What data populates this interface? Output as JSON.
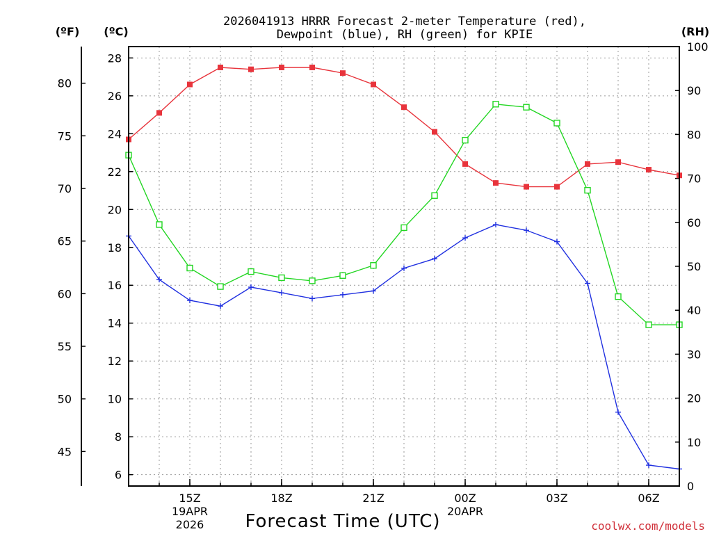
{
  "chart_data": {
    "type": "line",
    "title_line1": "2026041913 HRRR Forecast 2-meter Temperature (red),",
    "title_line2": "Dewpoint (blue), RH (green) for KPIE",
    "xlabel": "Forecast Time (UTC)",
    "credit": "coolwx.com/models",
    "units": {
      "fahrenheit": "(ºF)",
      "celsius": "(ºC)",
      "rh": "(RH)"
    },
    "x_hours": [
      13,
      14,
      15,
      16,
      17,
      18,
      19,
      20,
      21,
      22,
      23,
      24,
      25,
      26,
      27,
      28,
      29,
      30,
      31
    ],
    "x_tick_labels": [
      {
        "hour": 15,
        "label": "15Z",
        "date1": "19APR",
        "date2": "2026"
      },
      {
        "hour": 18,
        "label": "18Z"
      },
      {
        "hour": 21,
        "label": "21Z"
      },
      {
        "hour": 24,
        "label": "00Z",
        "date1": "20APR"
      },
      {
        "hour": 27,
        "label": "03Z"
      },
      {
        "hour": 30,
        "label": "06Z"
      }
    ],
    "xlim": [
      13,
      31
    ],
    "celsius_ylim": [
      5.4,
      28.6
    ],
    "celsius_ticks": [
      6,
      8,
      10,
      12,
      14,
      16,
      18,
      20,
      22,
      24,
      26,
      28
    ],
    "fahrenheit_ticks": [
      45,
      50,
      55,
      60,
      65,
      70,
      75,
      80
    ],
    "rh_ylim": [
      0,
      100
    ],
    "rh_ticks": [
      0,
      10,
      20,
      30,
      40,
      50,
      60,
      70,
      80,
      90,
      100
    ],
    "series": [
      {
        "name": "Temperature (ºC)",
        "color": "#e8343c",
        "marker": "filled-square",
        "axis": "celsius",
        "values": [
          23.7,
          25.1,
          26.6,
          27.5,
          27.4,
          27.5,
          27.5,
          27.2,
          26.6,
          25.4,
          24.1,
          22.4,
          21.4,
          21.2,
          21.2,
          22.4,
          22.5,
          22.1,
          21.8
        ]
      },
      {
        "name": "Dewpoint (ºC)",
        "color": "#2030e0",
        "marker": "plus",
        "axis": "celsius",
        "values": [
          18.6,
          16.3,
          15.2,
          14.9,
          15.9,
          15.6,
          15.3,
          15.5,
          15.7,
          16.9,
          17.4,
          18.5,
          19.2,
          18.9,
          18.3,
          16.1,
          9.3,
          6.5,
          6.3
        ]
      },
      {
        "name": "RH (%)",
        "color": "#22d622",
        "marker": "open-square",
        "axis": "rh",
        "values": [
          75.3,
          59.5,
          49.6,
          45.4,
          48.8,
          47.4,
          46.7,
          47.9,
          50.2,
          58.8,
          66.1,
          78.7,
          86.9,
          86.2,
          82.6,
          67.3,
          43.1,
          36.7,
          36.7
        ]
      }
    ]
  }
}
